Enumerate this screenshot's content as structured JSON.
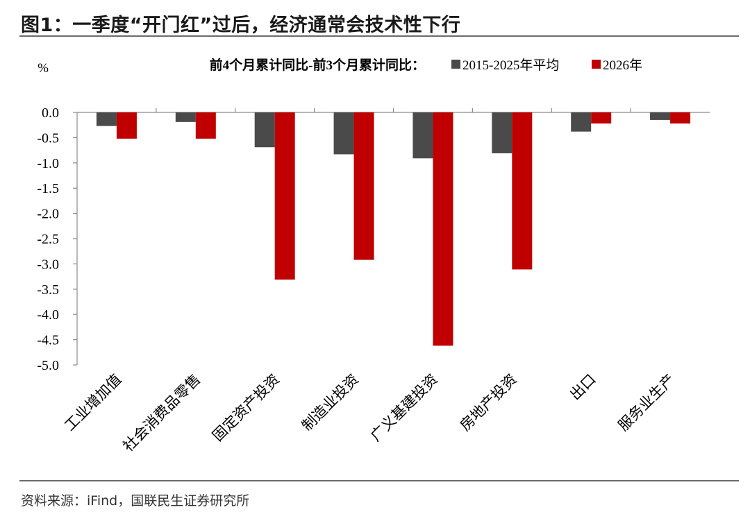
{
  "header": {
    "figure_title": "图1：一季度“开门红”过后，经济通常会技术性下行"
  },
  "footer": {
    "source": "资料来源：iFind，国联民生证券研究所"
  },
  "chart_data": {
    "type": "bar",
    "title": "前4个月累计同比-前3个月累计同比：",
    "unit_label": "%",
    "categories": [
      "工业增加值",
      "社会消费品零售",
      "固定资产投资",
      "制造业投资",
      "广义基建投资",
      "房地产投资",
      "出口",
      "服务业生产"
    ],
    "series": [
      {
        "name": "2015-2025年平均",
        "color": "#4a4a4a",
        "values": [
          -0.27,
          -0.19,
          -0.69,
          -0.83,
          -0.91,
          -0.81,
          -0.38,
          -0.15
        ]
      },
      {
        "name": "2026年",
        "color": "#c00000",
        "values": [
          -0.52,
          -0.52,
          -3.31,
          -2.92,
          -4.62,
          -3.11,
          -0.22,
          -0.22
        ]
      }
    ],
    "ylim": [
      -5.0,
      0.0
    ],
    "yticks": [
      "0.0",
      "-0.5",
      "-1.0",
      "-1.5",
      "-2.0",
      "-2.5",
      "-3.0",
      "-3.5",
      "-4.0",
      "-4.5",
      "-5.0"
    ],
    "legend_position": "top",
    "grid": false
  }
}
